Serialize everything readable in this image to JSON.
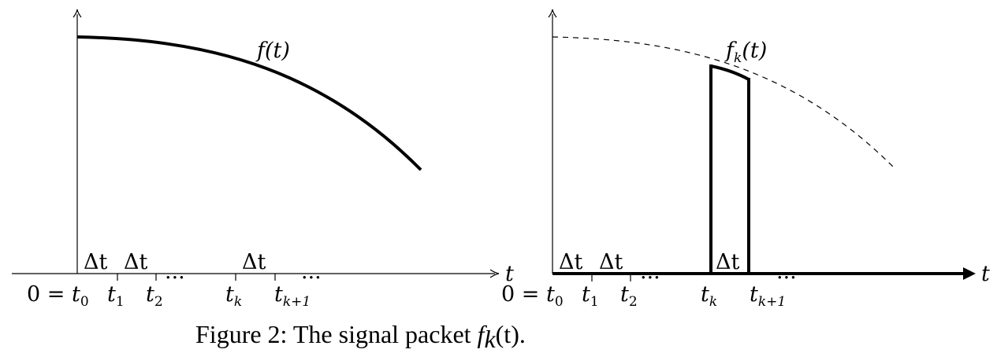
{
  "left_panel": {
    "curve_label": {
      "base": "f(t)"
    },
    "axis_var": "t",
    "origin": {
      "prefix": "0 = ",
      "base": "t",
      "sub": "0"
    },
    "ticks": [
      {
        "base": "t",
        "sub": "1"
      },
      {
        "base": "t",
        "sub": "2"
      },
      {
        "base": "t",
        "sub": "k"
      },
      {
        "base": "t",
        "sub": "k+1"
      }
    ],
    "delta_labels": [
      "Δt",
      "Δt",
      "Δt"
    ],
    "ellipses": [
      "···",
      "···"
    ]
  },
  "right_panel": {
    "curve_label": {
      "base": "f",
      "sub": "k",
      "tail": "(t)"
    },
    "axis_var": "t",
    "origin": {
      "prefix": "0 = ",
      "base": "t",
      "sub": "0"
    },
    "ticks": [
      {
        "base": "t",
        "sub": "1"
      },
      {
        "base": "t",
        "sub": "2"
      },
      {
        "base": "t",
        "sub": "k"
      },
      {
        "base": "t",
        "sub": "k+1"
      }
    ],
    "delta_labels": [
      "Δt",
      "Δt",
      "Δt"
    ],
    "ellipses": [
      "···",
      "···"
    ]
  },
  "caption": {
    "prefix": "Figure 2: The signal packet ",
    "math_base": "f",
    "math_sub": "k",
    "math_tail": "(t)."
  }
}
